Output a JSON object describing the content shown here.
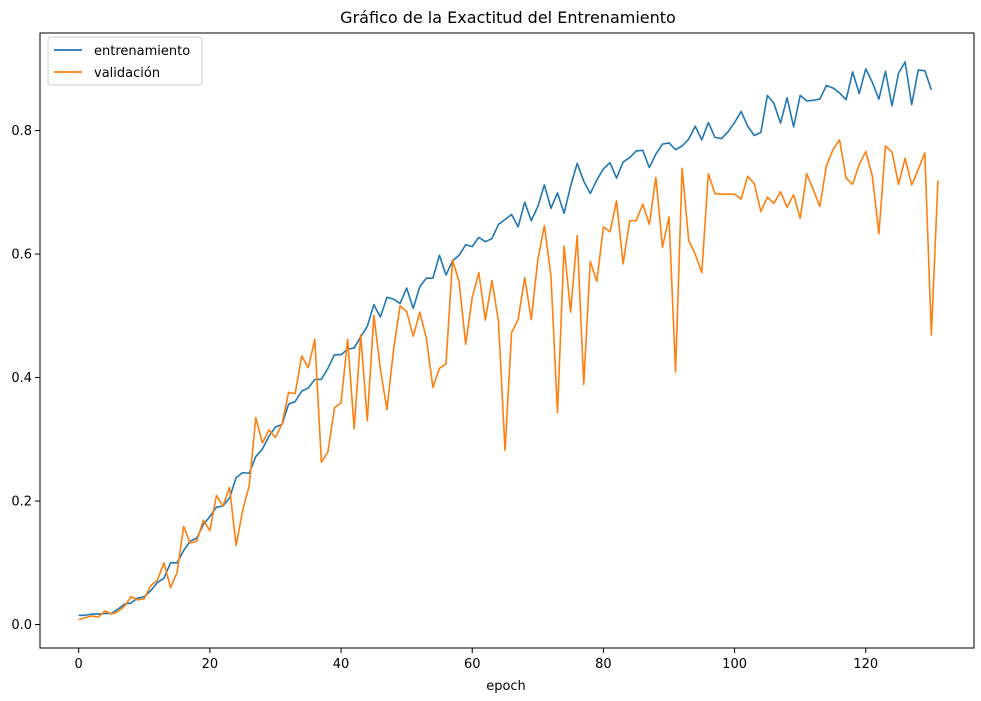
{
  "chart_data": {
    "type": "line",
    "title": "Gráfico de la Exactitud del Entrenamiento",
    "xlabel": "epoch",
    "ylabel": "",
    "xlim": [
      -5.9,
      136.5
    ],
    "ylim": [
      -0.038,
      0.958
    ],
    "xticks": [
      0,
      20,
      40,
      60,
      80,
      100,
      120
    ],
    "yticks": [
      0.0,
      0.2,
      0.4,
      0.6,
      0.8
    ],
    "xtick_labels": [
      "0",
      "20",
      "40",
      "60",
      "80",
      "100",
      "120"
    ],
    "ytick_labels": [
      "0.0",
      "0.2",
      "0.4",
      "0.6",
      "0.8"
    ],
    "legend_position": "top-left",
    "series": [
      {
        "name": "entrenamiento",
        "color": "#1f77b4",
        "values": [
          0.015,
          0.015,
          0.017,
          0.017,
          0.018,
          0.018,
          0.025,
          0.033,
          0.035,
          0.043,
          0.045,
          0.055,
          0.068,
          0.075,
          0.1,
          0.1,
          0.12,
          0.135,
          0.14,
          0.162,
          0.175,
          0.19,
          0.192,
          0.205,
          0.238,
          0.246,
          0.245,
          0.272,
          0.284,
          0.305,
          0.32,
          0.324,
          0.357,
          0.361,
          0.378,
          0.383,
          0.397,
          0.397,
          0.415,
          0.437,
          0.437,
          0.446,
          0.448,
          0.466,
          0.483,
          0.518,
          0.498,
          0.53,
          0.527,
          0.52,
          0.545,
          0.512,
          0.547,
          0.561,
          0.561,
          0.598,
          0.566,
          0.589,
          0.598,
          0.615,
          0.612,
          0.627,
          0.62,
          0.625,
          0.648,
          0.656,
          0.664,
          0.644,
          0.684,
          0.654,
          0.677,
          0.712,
          0.674,
          0.699,
          0.666,
          0.71,
          0.747,
          0.718,
          0.698,
          0.72,
          0.738,
          0.748,
          0.723,
          0.749,
          0.756,
          0.767,
          0.768,
          0.74,
          0.762,
          0.778,
          0.78,
          0.769,
          0.775,
          0.786,
          0.807,
          0.785,
          0.813,
          0.789,
          0.787,
          0.798,
          0.813,
          0.831,
          0.807,
          0.792,
          0.797,
          0.857,
          0.844,
          0.812,
          0.853,
          0.806,
          0.857,
          0.848,
          0.849,
          0.851,
          0.873,
          0.869,
          0.861,
          0.85,
          0.895,
          0.86,
          0.9,
          0.878,
          0.851,
          0.896,
          0.84,
          0.893,
          0.911,
          0.842,
          0.898,
          0.897,
          0.866
        ]
      },
      {
        "name": "validación",
        "color": "#ff7f0e",
        "values": [
          0.008,
          0.011,
          0.014,
          0.012,
          0.022,
          0.017,
          0.021,
          0.03,
          0.045,
          0.04,
          0.042,
          0.063,
          0.072,
          0.1,
          0.06,
          0.084,
          0.159,
          0.132,
          0.135,
          0.169,
          0.152,
          0.209,
          0.192,
          0.222,
          0.128,
          0.185,
          0.225,
          0.335,
          0.294,
          0.315,
          0.303,
          0.325,
          0.376,
          0.374,
          0.435,
          0.416,
          0.462,
          0.263,
          0.28,
          0.351,
          0.359,
          0.462,
          0.317,
          0.469,
          0.33,
          0.501,
          0.413,
          0.348,
          0.445,
          0.516,
          0.507,
          0.467,
          0.506,
          0.464,
          0.384,
          0.415,
          0.422,
          0.59,
          0.555,
          0.454,
          0.53,
          0.57,
          0.493,
          0.557,
          0.491,
          0.282,
          0.473,
          0.494,
          0.562,
          0.494,
          0.591,
          0.646,
          0.564,
          0.343,
          0.613,
          0.506,
          0.63,
          0.389,
          0.588,
          0.556,
          0.644,
          0.636,
          0.686,
          0.584,
          0.654,
          0.654,
          0.681,
          0.648,
          0.724,
          0.611,
          0.66,
          0.409,
          0.739,
          0.622,
          0.6,
          0.57,
          0.73,
          0.698,
          0.697,
          0.697,
          0.697,
          0.689,
          0.726,
          0.714,
          0.669,
          0.692,
          0.682,
          0.701,
          0.676,
          0.696,
          0.658,
          0.73,
          0.704,
          0.677,
          0.743,
          0.769,
          0.785,
          0.723,
          0.713,
          0.745,
          0.766,
          0.726,
          0.633,
          0.775,
          0.765,
          0.713,
          0.755,
          0.712,
          0.737,
          0.764,
          0.469,
          0.719
        ]
      }
    ]
  }
}
